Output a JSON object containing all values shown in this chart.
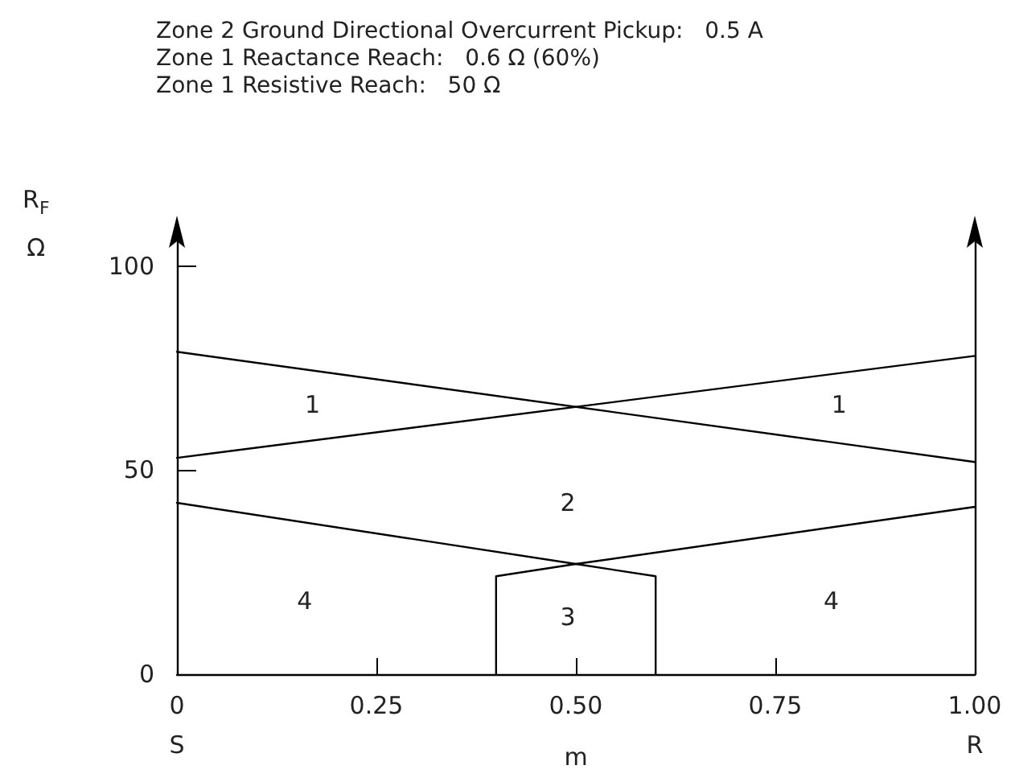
{
  "chart_data": {
    "type": "line",
    "title": "Zone 2 Ground Directional Overcurrent Pickup:   0.5 A\nZone 1 Reactance Reach:   0.6 Ω (60%)\nZone 1 Resistive Reach:   50 Ω",
    "xlabel": "m",
    "ylabel": "R$_{F}$\nΩ",
    "series": [
      {
        "color": "#000000",
        "x": [
          0,
          1
        ],
        "values": [
          79,
          52
        ]
      },
      {
        "color": "#000000",
        "x": [
          0,
          1
        ],
        "values": [
          53,
          78
        ]
      },
      {
        "color": "#000000",
        "x": [
          0,
          0.5,
          0.6,
          0.6
        ],
        "values": [
          42,
          27,
          24,
          0
        ]
      },
      {
        "color": "#000000",
        "x": [
          1,
          0.5,
          0.4,
          0.4
        ],
        "values": [
          41,
          27,
          24,
          0
        ]
      }
    ],
    "annotations": [
      "1",
      "1",
      "2",
      "3",
      "4",
      "4",
      "S",
      "R"
    ],
    "xlim": [
      0,
      1
    ],
    "xticks": [
      0,
      {
        "value": 0.25,
        "label": "0.25"
      },
      {
        "value": 0.5,
        "label": "0.50"
      },
      0.75,
      {
        "value": 1,
        "label": "1.00"
      }
    ],
    "ylim": [
      0,
      110
    ],
    "yticks": [
      0,
      50,
      100
    ],
    "grid": false,
    "marker": "none",
    "line_style": "solid"
  }
}
